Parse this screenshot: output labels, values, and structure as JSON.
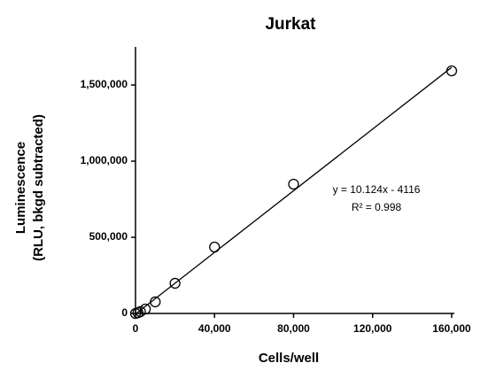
{
  "chart_data": {
    "type": "scatter",
    "title": "Jurkat",
    "x_label": "Cells/well",
    "y_label": [
      "Luminescence",
      "(RLU, bkgd subtracted)"
    ],
    "x": [
      0,
      1250,
      2500,
      5000,
      10000,
      20000,
      40000,
      80000,
      160000
    ],
    "series": [
      {
        "name": "Jurkat",
        "color": "#000000",
        "values": [
          0,
          5000,
          12000,
          29000,
          76000,
          198000,
          436000,
          849000,
          1593000
        ]
      }
    ],
    "trendline": {
      "equation": "y = 10.124x - 4116",
      "r2": "R² = 0.998",
      "slope": 10.124,
      "intercept": -4116
    },
    "xlim": [
      0,
      160000
    ],
    "ylim": [
      0,
      1750000
    ],
    "xticks": [
      0,
      {
        "value": 40000,
        "label": "40,000"
      },
      {
        "value": 80000,
        "label": "80,000"
      },
      {
        "value": 120000,
        "label": "120,000"
      },
      {
        "value": 160000,
        "label": "160,000"
      }
    ],
    "yticks": [
      0,
      {
        "value": 500000,
        "label": "500,000"
      },
      {
        "value": 1000000,
        "label": "1,000,000"
      },
      {
        "value": 1500000,
        "label": "1,500,000"
      }
    ],
    "grid": false
  }
}
